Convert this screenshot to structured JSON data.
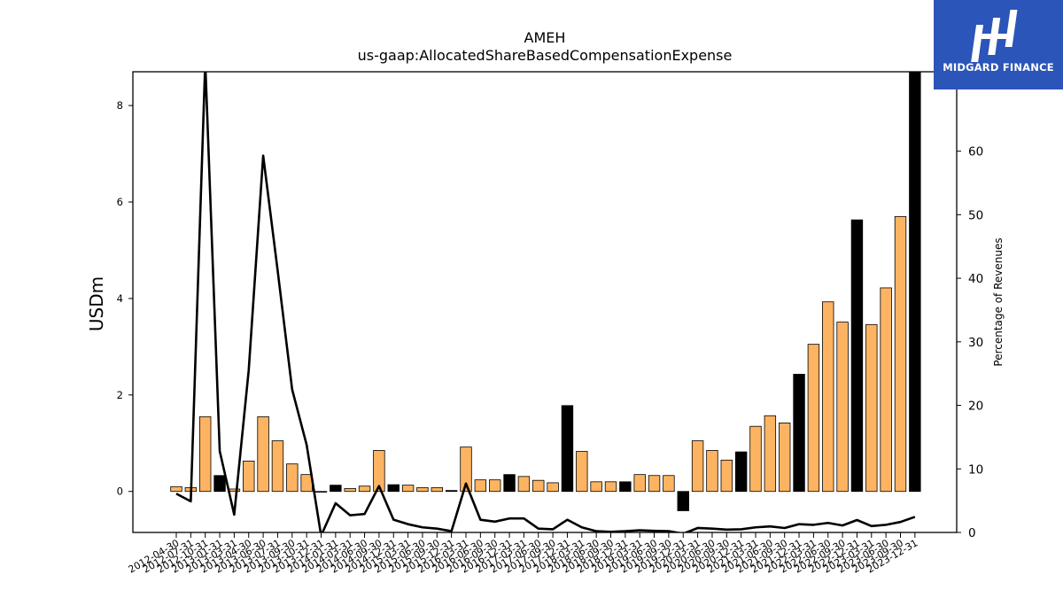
{
  "chart_data": {
    "type": "bar",
    "title": "AMEH",
    "subtitle": "us-gaap:AllocatedShareBasedCompensationExpense",
    "ylabel": "USDm",
    "y2label": "Percentage of Revenues",
    "ylim": [
      -0.85,
      8.7
    ],
    "y2lim": [
      0,
      72.5
    ],
    "yticks": [
      0,
      2,
      4,
      6,
      8
    ],
    "y2ticks": [
      0,
      10,
      20,
      30,
      40,
      50,
      60
    ],
    "categories": [
      "2012-04-30",
      "2012-07-31",
      "2012-10-31",
      "2013-01-31",
      "2013-03-31",
      "2013-04-30",
      "2013-06-30",
      "2013-07-31",
      "2013-09-30",
      "2013-10-31",
      "2013-12-31",
      "2014-01-31",
      "2014-03-31",
      "2014-06-30",
      "2014-09-30",
      "2014-12-31",
      "2015-03-31",
      "2015-06-30",
      "2015-09-30",
      "2015-12-31",
      "2016-03-31",
      "2016-06-30",
      "2016-09-30",
      "2016-12-31",
      "2017-03-31",
      "2017-06-30",
      "2017-09-30",
      "2017-12-31",
      "2018-03-31",
      "2018-06-30",
      "2018-09-30",
      "2018-12-31",
      "2019-03-31",
      "2019-06-30",
      "2019-09-30",
      "2019-12-31",
      "2020-03-31",
      "2020-06-30",
      "2020-09-30",
      "2020-12-31",
      "2021-03-31",
      "2021-06-30",
      "2021-09-30",
      "2021-12-31",
      "2022-03-31",
      "2022-06-30",
      "2022-09-30",
      "2022-12-31",
      "2023-03-31",
      "2023-06-30",
      "2023-09-30",
      "2023-12-31"
    ],
    "series": [
      {
        "type": "bar",
        "values": [
          0.1,
          0.08,
          1.55,
          0.33,
          0.05,
          0.63,
          1.55,
          1.05,
          0.57,
          0.35,
          -0.01,
          0.13,
          0.06,
          0.11,
          0.85,
          0.14,
          0.13,
          0.08,
          0.08,
          0.02,
          0.92,
          0.24,
          0.24,
          0.35,
          0.31,
          0.23,
          0.18,
          1.78,
          0.83,
          0.2,
          0.2,
          0.2,
          0.35,
          0.33,
          0.33,
          -0.4,
          1.05,
          0.85,
          0.65,
          0.82,
          1.35,
          1.57,
          1.42,
          2.43,
          3.05,
          3.93,
          3.51,
          5.63,
          3.46,
          4.22,
          5.7,
          8.7
        ],
        "colors": [
          "#fdb462",
          "#fdb462",
          "#fdb462",
          "#000000",
          "#fdb462",
          "#fdb462",
          "#fdb462",
          "#fdb462",
          "#fdb462",
          "#fdb462",
          "#000000",
          "#000000",
          "#fdb462",
          "#fdb462",
          "#fdb462",
          "#000000",
          "#fdb462",
          "#fdb462",
          "#fdb462",
          "#000000",
          "#fdb462",
          "#fdb462",
          "#fdb462",
          "#000000",
          "#fdb462",
          "#fdb462",
          "#fdb462",
          "#000000",
          "#fdb462",
          "#fdb462",
          "#fdb462",
          "#000000",
          "#fdb462",
          "#fdb462",
          "#fdb462",
          "#000000",
          "#fdb462",
          "#fdb462",
          "#fdb462",
          "#000000",
          "#fdb462",
          "#fdb462",
          "#fdb462",
          "#000000",
          "#fdb462",
          "#fdb462",
          "#fdb462",
          "#000000",
          "#fdb462",
          "#fdb462",
          "#fdb462",
          "#000000"
        ]
      },
      {
        "type": "line",
        "axis": "right",
        "color": "#000000",
        "values": [
          6.1,
          4.9,
          74,
          12.8,
          2.8,
          25.5,
          59.3,
          41.2,
          22.5,
          13.8,
          -0.5,
          4.6,
          2.7,
          2.9,
          7.3,
          2.0,
          1.3,
          0.8,
          0.6,
          0.2,
          7.7,
          2.0,
          1.7,
          2.2,
          2.2,
          0.6,
          0.5,
          2.0,
          0.8,
          0.2,
          0.1,
          0.2,
          0.35,
          0.25,
          0.2,
          -0.2,
          0.7,
          0.6,
          0.45,
          0.5,
          0.8,
          0.95,
          0.7,
          1.3,
          1.2,
          1.5,
          1.1,
          1.95,
          1.0,
          1.2,
          1.65,
          2.45
        ]
      }
    ],
    "bar_color": "#fdb462",
    "bar_color_alt": "#000000"
  },
  "logo": {
    "text": "MIDGARD FINANCE",
    "background": "#2b55b8"
  }
}
